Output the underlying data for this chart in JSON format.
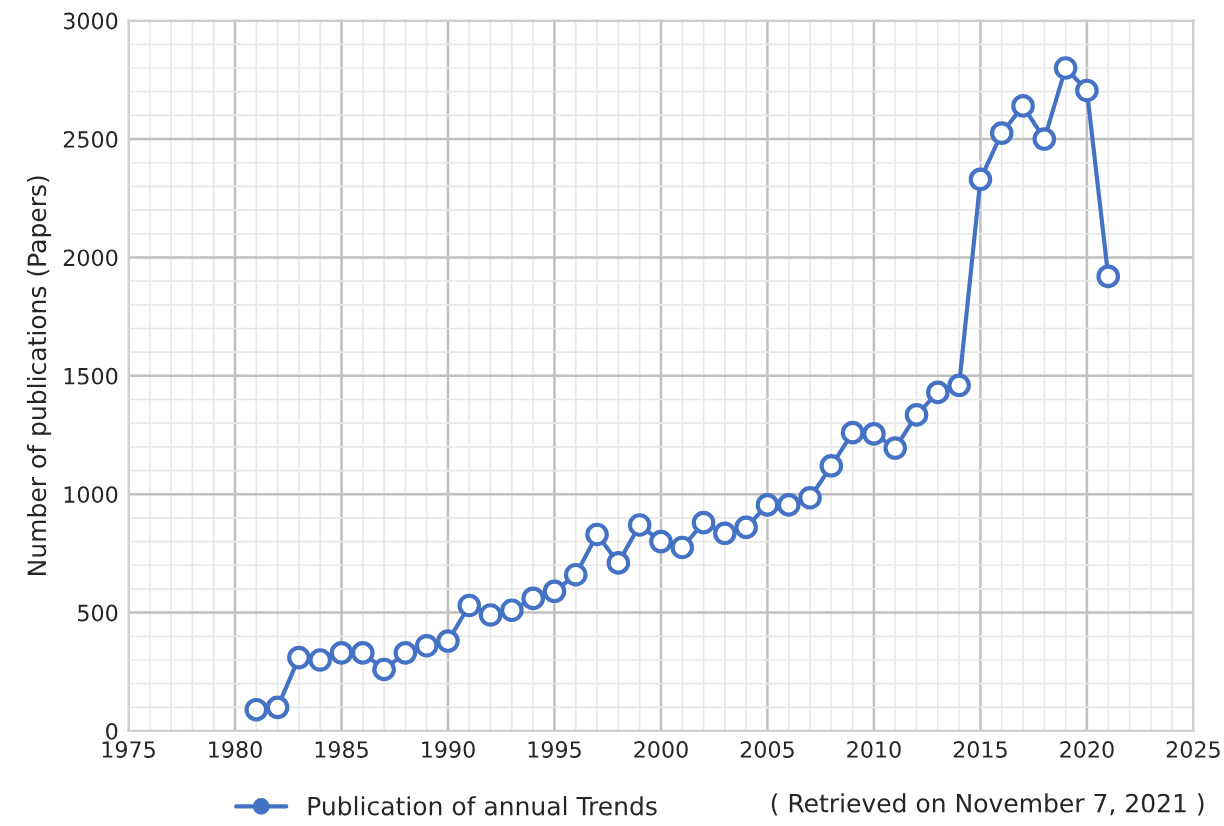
{
  "chart_data": {
    "type": "line",
    "ylabel": "Number of publications (Papers)",
    "x": [
      1981,
      1982,
      1983,
      1984,
      1985,
      1986,
      1987,
      1988,
      1989,
      1990,
      1991,
      1992,
      1993,
      1994,
      1995,
      1996,
      1997,
      1998,
      1999,
      2000,
      2001,
      2002,
      2003,
      2004,
      2005,
      2006,
      2007,
      2008,
      2009,
      2010,
      2011,
      2012,
      2013,
      2014,
      2015,
      2016,
      2017,
      2018,
      2019,
      2020,
      2021
    ],
    "series": [
      {
        "name": "Publication of annual Trends",
        "color": "#4472c4",
        "values": [
          90,
          100,
          310,
          300,
          330,
          330,
          260,
          330,
          360,
          380,
          530,
          490,
          510,
          560,
          590,
          660,
          830,
          710,
          870,
          800,
          775,
          880,
          835,
          860,
          955,
          955,
          985,
          1120,
          1260,
          1255,
          1195,
          1335,
          1430,
          1460,
          2330,
          2525,
          2640,
          2500,
          2800,
          2705,
          1920
        ]
      }
    ],
    "xlim": [
      1975,
      2025
    ],
    "xticks": [
      1975,
      1980,
      1985,
      1990,
      1995,
      2000,
      2005,
      2010,
      2015,
      2020,
      2025
    ],
    "ylim": [
      0,
      3000
    ],
    "yticks": [
      0,
      500,
      1000,
      1500,
      2000,
      2500,
      3000
    ],
    "grid": true,
    "legend": "bottom",
    "marker": "circle",
    "line_style": "solid",
    "annotations": [
      "( Retrieved on November 7, 2021 )"
    ]
  }
}
